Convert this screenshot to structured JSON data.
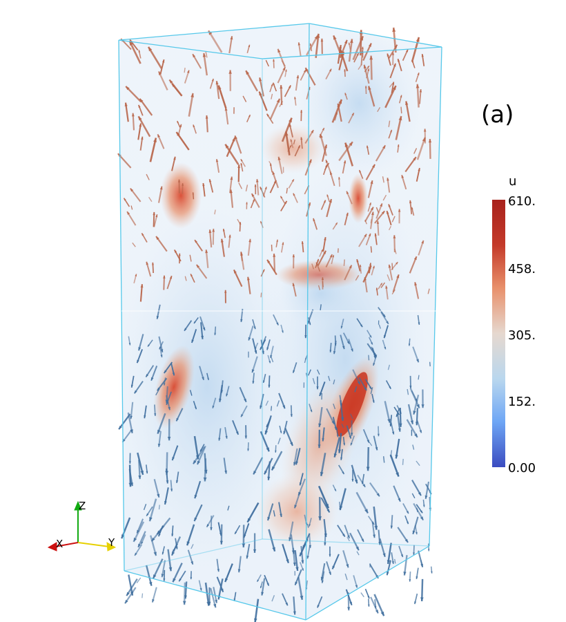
{
  "figure": {
    "panel_label": "(a)"
  },
  "colorbar": {
    "title": "u",
    "ticks": [
      "610.",
      "458.",
      "305.",
      "152.",
      "0.00"
    ],
    "colormap": [
      "#3b4cc0",
      "#6ea6f5",
      "#b9d7ee",
      "#e6d8cf",
      "#e8906b",
      "#c43a2a",
      "#a8221c"
    ]
  },
  "orientation_axes": {
    "x_label": "X",
    "y_label": "Y",
    "z_label": "Z",
    "x_color": "#cc1111",
    "y_color": "#e6d000",
    "z_color": "#11aa11"
  },
  "scene": {
    "box_color": "#55c8ea",
    "up_arrow_color": "#b8654a",
    "down_arrow_color": "#3f6e9e"
  }
}
